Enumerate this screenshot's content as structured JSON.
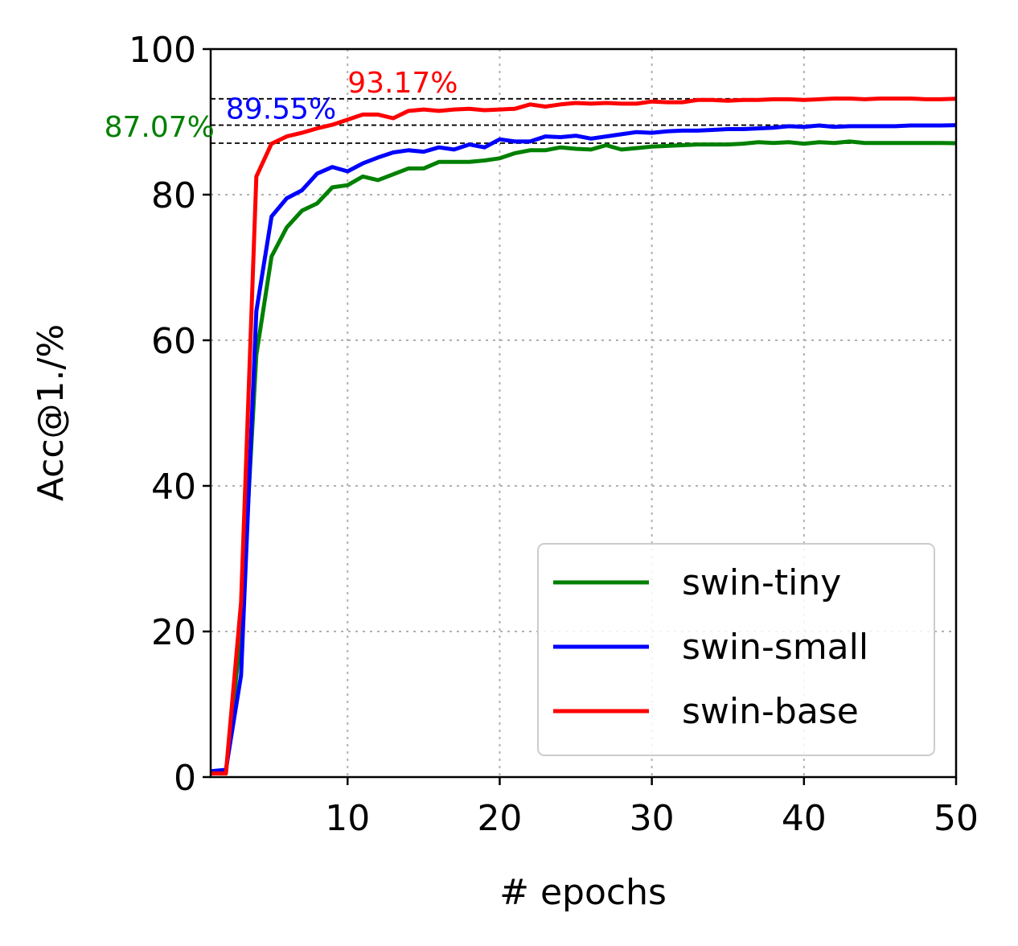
{
  "chart_data": {
    "type": "line",
    "xlabel": "# epochs",
    "ylabel": "Acc@1./%",
    "xlim": [
      1,
      50
    ],
    "ylim": [
      0,
      100
    ],
    "xticks": [
      10,
      20,
      30,
      40,
      50
    ],
    "yticks": [
      0,
      20,
      40,
      60,
      80,
      100
    ],
    "grid": true,
    "legend_position": "lower-right",
    "x": [
      1,
      2,
      3,
      4,
      5,
      6,
      7,
      8,
      9,
      10,
      11,
      12,
      13,
      14,
      15,
      16,
      17,
      18,
      19,
      20,
      21,
      22,
      23,
      24,
      25,
      26,
      27,
      28,
      29,
      30,
      31,
      32,
      33,
      34,
      35,
      36,
      37,
      38,
      39,
      40,
      41,
      42,
      43,
      44,
      45,
      46,
      47,
      48,
      49,
      50
    ],
    "series": [
      {
        "name": "swin-tiny",
        "color": "#008000",
        "values": [
          0.5,
          0.5,
          20,
          58,
          71.5,
          75.5,
          77.8,
          78.8,
          81,
          81.3,
          82.5,
          82,
          82.8,
          83.6,
          83.6,
          84.5,
          84.5,
          84.5,
          84.7,
          85,
          85.7,
          86.1,
          86.1,
          86.5,
          86.3,
          86.2,
          86.8,
          86.2,
          86.4,
          86.6,
          86.7,
          86.8,
          86.9,
          86.9,
          86.9,
          87,
          87.2,
          87.1,
          87.2,
          87,
          87.2,
          87.1,
          87.3,
          87.1,
          87.1,
          87.1,
          87.1,
          87.1,
          87.1,
          87.07
        ]
      },
      {
        "name": "swin-small",
        "color": "#0000ff",
        "values": [
          0.8,
          1,
          14,
          64,
          77,
          79.5,
          80.6,
          82.9,
          83.8,
          83.2,
          84.3,
          85.1,
          85.8,
          86.1,
          85.9,
          86.5,
          86.2,
          86.9,
          86.5,
          87.6,
          87.3,
          87.3,
          88,
          87.9,
          88.1,
          87.7,
          88,
          88.3,
          88.6,
          88.5,
          88.7,
          88.8,
          88.8,
          88.9,
          89,
          89,
          89.1,
          89.2,
          89.4,
          89.3,
          89.5,
          89.3,
          89.4,
          89.4,
          89.4,
          89.4,
          89.5,
          89.5,
          89.5,
          89.55
        ]
      },
      {
        "name": "swin-base",
        "color": "#ff0000",
        "values": [
          0.5,
          0.5,
          24,
          82.5,
          87,
          88,
          88.5,
          89.1,
          89.6,
          90.3,
          91,
          91,
          90.5,
          91.5,
          91.7,
          91.5,
          91.7,
          91.8,
          91.6,
          91.7,
          91.8,
          92.4,
          92.1,
          92.4,
          92.6,
          92.5,
          92.6,
          92.5,
          92.5,
          92.8,
          92.7,
          92.7,
          93,
          93,
          92.9,
          93,
          93,
          93.1,
          93.1,
          93,
          93.1,
          93.2,
          93.2,
          93.1,
          93.2,
          93.2,
          93.2,
          93.1,
          93.1,
          93.17
        ]
      }
    ],
    "reference_lines": [
      {
        "y": 93.17,
        "label": "93.17%",
        "color": "#ff0000",
        "label_x": 10
      },
      {
        "y": 89.55,
        "label": "89.55%",
        "color": "#0000ff",
        "label_x": 2
      },
      {
        "y": 87.07,
        "label": "87.07%",
        "color": "#008000",
        "label_x": -6
      }
    ]
  }
}
